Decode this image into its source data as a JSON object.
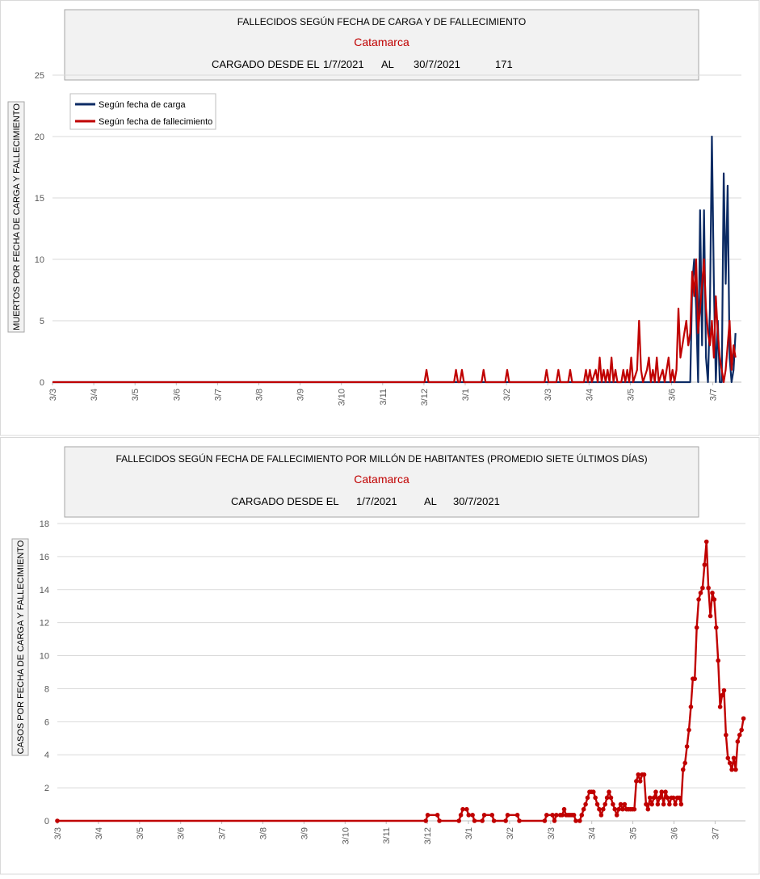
{
  "chart_data": [
    {
      "type": "line",
      "header": {
        "title": "FALLECIDOS SEGÚN FECHA DE CARGA Y DE FALLECIMIENTO",
        "region": "Catamarca",
        "loaded_label": "CARGADO DESDE EL",
        "date_from": "1/7/2021",
        "al_label": "AL",
        "date_to": "30/7/2021",
        "total": "171"
      },
      "ylabel": "MUERTOS  POR FECHA DE CARGA  Y FALLECIMIENTO",
      "ylim": [
        0,
        25
      ],
      "yticks": [
        "0",
        "5",
        "10",
        "15",
        "20",
        "25"
      ],
      "x_tick_labels": [
        "3/3",
        "3/4",
        "3/5",
        "3/6",
        "3/7",
        "3/8",
        "3/9",
        "3/10",
        "3/11",
        "3/12",
        "3/1",
        "3/2",
        "3/3",
        "3/4",
        "3/5",
        "3/6",
        "3/7"
      ],
      "grid": true,
      "legend_position": "top-left",
      "series": [
        {
          "name": "Según fecha de carga",
          "color": "#0c2b64",
          "points": [
            [
              0,
              0
            ],
            [
              324,
              0
            ],
            [
              325,
              8
            ],
            [
              326,
              10
            ],
            [
              327,
              6
            ],
            [
              328,
              0
            ],
            [
              329,
              14
            ],
            [
              330,
              3
            ],
            [
              331,
              14
            ],
            [
              332,
              2
            ],
            [
              333,
              0
            ],
            [
              334,
              6
            ],
            [
              335,
              20
            ],
            [
              336,
              8
            ],
            [
              337,
              0
            ],
            [
              338,
              5
            ],
            [
              339,
              0
            ],
            [
              340,
              0
            ],
            [
              341,
              17
            ],
            [
              342,
              8
            ],
            [
              343,
              16
            ],
            [
              344,
              2
            ],
            [
              345,
              0
            ],
            [
              346,
              1
            ],
            [
              347,
              4
            ]
          ]
        },
        {
          "name": "Según fecha de fallecimiento",
          "color": "#c00000",
          "points": [
            [
              0,
              0
            ],
            [
              189,
              0
            ],
            [
              190,
              1
            ],
            [
              191,
              0
            ],
            [
              204,
              0
            ],
            [
              205,
              1
            ],
            [
              206,
              0
            ],
            [
              207,
              0
            ],
            [
              208,
              1
            ],
            [
              209,
              0
            ],
            [
              218,
              0
            ],
            [
              219,
              1
            ],
            [
              220,
              0
            ],
            [
              230,
              0
            ],
            [
              231,
              1
            ],
            [
              232,
              0
            ],
            [
              250,
              0
            ],
            [
              251,
              1
            ],
            [
              252,
              0
            ],
            [
              256,
              0
            ],
            [
              257,
              1
            ],
            [
              258,
              0
            ],
            [
              262,
              0
            ],
            [
              263,
              1
            ],
            [
              264,
              0
            ],
            [
              270,
              0
            ],
            [
              271,
              1
            ],
            [
              272,
              0
            ],
            [
              273,
              1
            ],
            [
              274,
              0
            ],
            [
              276,
              1
            ],
            [
              277,
              0
            ],
            [
              278,
              2
            ],
            [
              279,
              0
            ],
            [
              280,
              1
            ],
            [
              281,
              0
            ],
            [
              282,
              1
            ],
            [
              283,
              0
            ],
            [
              284,
              2
            ],
            [
              285,
              0
            ],
            [
              286,
              1
            ],
            [
              287,
              0
            ],
            [
              289,
              0
            ],
            [
              290,
              1
            ],
            [
              291,
              0
            ],
            [
              292,
              1
            ],
            [
              293,
              0
            ],
            [
              294,
              2
            ],
            [
              295,
              0
            ],
            [
              297,
              1
            ],
            [
              298,
              5
            ],
            [
              299,
              1
            ],
            [
              300,
              0
            ],
            [
              302,
              1
            ],
            [
              303,
              2
            ],
            [
              304,
              0
            ],
            [
              305,
              1
            ],
            [
              306,
              0
            ],
            [
              307,
              2
            ],
            [
              308,
              0
            ],
            [
              310,
              1
            ],
            [
              311,
              0
            ],
            [
              312,
              1
            ],
            [
              313,
              2
            ],
            [
              314,
              0
            ],
            [
              315,
              1
            ],
            [
              316,
              0
            ],
            [
              317,
              1
            ],
            [
              318,
              6
            ],
            [
              319,
              2
            ],
            [
              320,
              3
            ],
            [
              321,
              4
            ],
            [
              322,
              5
            ],
            [
              323,
              3
            ],
            [
              324,
              4
            ],
            [
              325,
              9
            ],
            [
              326,
              7
            ],
            [
              327,
              10
            ],
            [
              328,
              4
            ],
            [
              329,
              6
            ],
            [
              330,
              8
            ],
            [
              331,
              10
            ],
            [
              332,
              6
            ],
            [
              333,
              4
            ],
            [
              334,
              3
            ],
            [
              335,
              5
            ],
            [
              336,
              2
            ],
            [
              337,
              7
            ],
            [
              338,
              4
            ],
            [
              339,
              2
            ],
            [
              340,
              1
            ],
            [
              341,
              0
            ],
            [
              342,
              1
            ],
            [
              343,
              3
            ],
            [
              344,
              5
            ],
            [
              345,
              1
            ],
            [
              346,
              3
            ],
            [
              347,
              2
            ]
          ]
        }
      ]
    },
    {
      "type": "line",
      "header": {
        "title": "FALLECIDOS SEGÚN FECHA DE FALLECIMIENTO POR MILLÓN DE HABITANTES (PROMEDIO SIETE ÚLTIMOS DÍAS)",
        "region": "Catamarca",
        "loaded_label": "CARGADO DESDE EL",
        "date_from": "1/7/2021",
        "al_label": "AL",
        "date_to": "30/7/2021"
      },
      "ylabel": "CASOS POR FECHA DE CARGA  Y FALLECIMIENTO",
      "ylim": [
        0,
        18
      ],
      "yticks": [
        "0",
        "2",
        "4",
        "6",
        "8",
        "10",
        "12",
        "14",
        "16",
        "18"
      ],
      "x_tick_labels": [
        "3/3",
        "3/4",
        "3/5",
        "3/6",
        "3/7",
        "3/8",
        "3/9",
        "3/10",
        "3/11",
        "3/12",
        "3/1",
        "3/2",
        "3/3",
        "3/4",
        "3/5",
        "3/6",
        "3/7"
      ],
      "grid": true,
      "series": [
        {
          "color": "#c00000",
          "points": [
            [
              0,
              0
            ],
            [
              189,
              0
            ],
            [
              190,
              0.35
            ],
            [
              195,
              0.35
            ],
            [
              196,
              0
            ],
            [
              206,
              0
            ],
            [
              207,
              0.35
            ],
            [
              208,
              0.7
            ],
            [
              210,
              0.7
            ],
            [
              211,
              0.35
            ],
            [
              213,
              0.35
            ],
            [
              214,
              0
            ],
            [
              218,
              0
            ],
            [
              219,
              0.35
            ],
            [
              223,
              0.35
            ],
            [
              224,
              0
            ],
            [
              230,
              0
            ],
            [
              231,
              0.35
            ],
            [
              236,
              0.35
            ],
            [
              237,
              0
            ],
            [
              250,
              0
            ],
            [
              251,
              0.35
            ],
            [
              254,
              0.35
            ],
            [
              255,
              0
            ],
            [
              256,
              0.35
            ],
            [
              258,
              0.35
            ],
            [
              259,
              0.35
            ],
            [
              260,
              0.7
            ],
            [
              261,
              0.35
            ],
            [
              262,
              0.35
            ],
            [
              263,
              0.35
            ],
            [
              264,
              0.35
            ],
            [
              265,
              0.35
            ],
            [
              266,
              0
            ],
            [
              268,
              0
            ],
            [
              269,
              0.35
            ],
            [
              270,
              0.7
            ],
            [
              271,
              1.0
            ],
            [
              272,
              1.4
            ],
            [
              273,
              1.75
            ],
            [
              274,
              1.75
            ],
            [
              275,
              1.75
            ],
            [
              276,
              1.4
            ],
            [
              277,
              1.0
            ],
            [
              278,
              0.7
            ],
            [
              279,
              0.35
            ],
            [
              280,
              0.7
            ],
            [
              281,
              1.0
            ],
            [
              282,
              1.4
            ],
            [
              283,
              1.75
            ],
            [
              284,
              1.4
            ],
            [
              285,
              1.0
            ],
            [
              286,
              0.7
            ],
            [
              287,
              0.35
            ],
            [
              288,
              0.7
            ],
            [
              289,
              1.0
            ],
            [
              290,
              0.7
            ],
            [
              291,
              1.0
            ],
            [
              292,
              0.7
            ],
            [
              293,
              0.7
            ],
            [
              294,
              0.7
            ],
            [
              295,
              0.7
            ],
            [
              296,
              0.7
            ],
            [
              297,
              2.4
            ],
            [
              298,
              2.8
            ],
            [
              299,
              2.4
            ],
            [
              300,
              2.8
            ],
            [
              301,
              2.8
            ],
            [
              302,
              1.0
            ],
            [
              303,
              0.7
            ],
            [
              304,
              1.4
            ],
            [
              305,
              1.0
            ],
            [
              306,
              1.4
            ],
            [
              307,
              1.75
            ],
            [
              308,
              1.0
            ],
            [
              309,
              1.4
            ],
            [
              310,
              1.75
            ],
            [
              311,
              1.0
            ],
            [
              312,
              1.75
            ],
            [
              313,
              1.4
            ],
            [
              314,
              1.0
            ],
            [
              315,
              1.4
            ],
            [
              316,
              1.4
            ],
            [
              317,
              1.0
            ],
            [
              318,
              1.4
            ],
            [
              319,
              1.4
            ],
            [
              320,
              1.0
            ],
            [
              321,
              3.1
            ],
            [
              322,
              3.5
            ],
            [
              323,
              4.5
            ],
            [
              324,
              5.5
            ],
            [
              325,
              6.9
            ],
            [
              326,
              8.6
            ],
            [
              327,
              8.6
            ],
            [
              328,
              11.7
            ],
            [
              329,
              13.4
            ],
            [
              330,
              13.8
            ],
            [
              331,
              14.1
            ],
            [
              332,
              15.5
            ],
            [
              333,
              16.9
            ],
            [
              334,
              14.1
            ],
            [
              335,
              12.4
            ],
            [
              336,
              13.8
            ],
            [
              337,
              13.4
            ],
            [
              338,
              11.7
            ],
            [
              339,
              9.7
            ],
            [
              340,
              6.9
            ],
            [
              341,
              7.6
            ],
            [
              342,
              7.9
            ],
            [
              343,
              5.2
            ],
            [
              344,
              3.8
            ],
            [
              345,
              3.5
            ],
            [
              346,
              3.1
            ],
            [
              347,
              3.8
            ],
            [
              348,
              3.1
            ],
            [
              349,
              4.8
            ],
            [
              350,
              5.2
            ],
            [
              351,
              5.5
            ],
            [
              352,
              6.2
            ]
          ]
        }
      ]
    }
  ]
}
